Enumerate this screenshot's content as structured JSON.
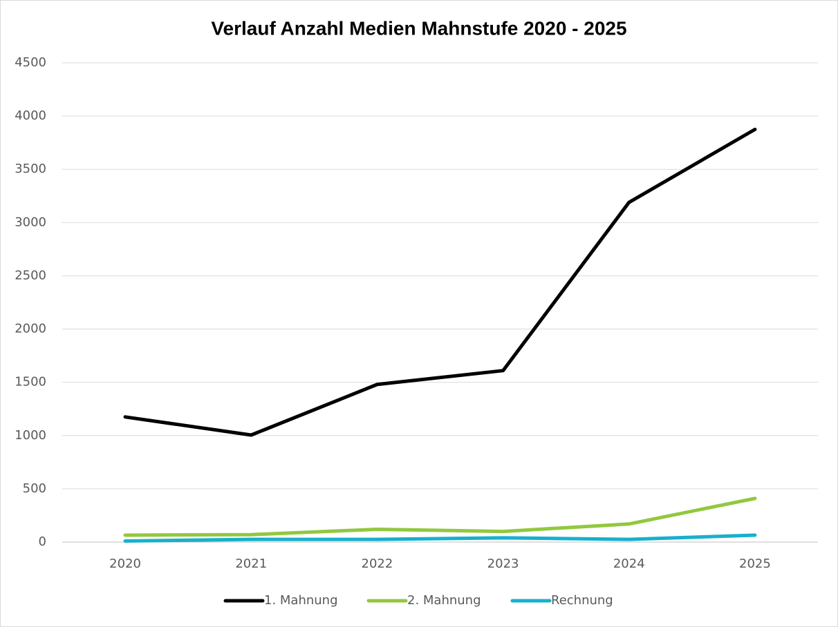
{
  "chart_data": {
    "type": "line",
    "title": "Verlauf Anzahl Medien Mahnstufe 2020 - 2025",
    "categories": [
      "2020",
      "2021",
      "2022",
      "2023",
      "2024",
      "2025"
    ],
    "series": [
      {
        "name": "1. Mahnung",
        "color": "#000000",
        "values": [
          1175,
          1005,
          1480,
          1610,
          3190,
          3875
        ]
      },
      {
        "name": "2. Mahnung",
        "color": "#92c83e",
        "values": [
          65,
          70,
          120,
          100,
          170,
          410
        ]
      },
      {
        "name": "Rechnung",
        "color": "#17b0cc",
        "values": [
          10,
          25,
          25,
          40,
          25,
          65
        ]
      }
    ],
    "ylim": [
      0,
      4500
    ],
    "yticks": [
      0,
      500,
      1000,
      1500,
      2000,
      2500,
      3000,
      3500,
      4000,
      4500
    ],
    "grid": true,
    "legend": "bottom"
  }
}
